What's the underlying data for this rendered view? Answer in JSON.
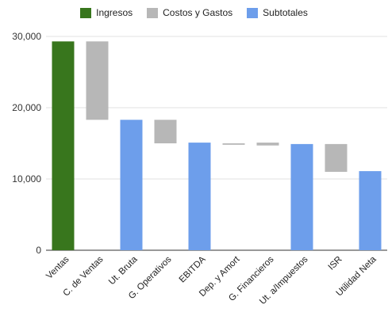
{
  "chart_data": {
    "type": "bar",
    "subtype": "waterfall",
    "legend_position": "top-center",
    "legend": [
      {
        "label": "Ingresos",
        "color": "#38761d"
      },
      {
        "label": "Costos y Gastos",
        "color": "#b7b7b7"
      },
      {
        "label": "Subtotales",
        "color": "#6d9eeb"
      }
    ],
    "ylim": [
      0,
      30000
    ],
    "yticks": [
      {
        "value": 0,
        "label": "0"
      },
      {
        "value": 10000,
        "label": "10,000"
      },
      {
        "value": 20000,
        "label": "20,000"
      },
      {
        "value": 30000,
        "label": "30,000"
      }
    ],
    "grid": true,
    "categories": [
      "Ventas",
      "C. de Ventas",
      "Ut. Bruta",
      "G. Operativos",
      "EBITDA",
      "Dep. y Amort",
      "G. Financieros",
      "Ut. a/Impuestos",
      "ISR",
      "Utilidad Neta"
    ],
    "bars": [
      {
        "category": "Ventas",
        "kind": "Ingresos",
        "start": 0,
        "end": 29300
      },
      {
        "category": "C. de Ventas",
        "kind": "Costos y Gastos",
        "start": 29300,
        "end": 18300
      },
      {
        "category": "Ut. Bruta",
        "kind": "Subtotales",
        "start": 0,
        "end": 18300
      },
      {
        "category": "G. Operativos",
        "kind": "Costos y Gastos",
        "start": 18300,
        "end": 15000
      },
      {
        "category": "EBITDA",
        "kind": "Subtotales",
        "start": 0,
        "end": 15100
      },
      {
        "category": "Dep. y Amort",
        "kind": "Costos y Gastos",
        "start": 15000,
        "end": 14800
      },
      {
        "category": "G. Financieros",
        "kind": "Costos y Gastos",
        "start": 15100,
        "end": 14700
      },
      {
        "category": "Ut. a/Impuestos",
        "kind": "Subtotales",
        "start": 0,
        "end": 14900
      },
      {
        "category": "ISR",
        "kind": "Costos y Gastos",
        "start": 14900,
        "end": 11000
      },
      {
        "category": "Utilidad Neta",
        "kind": "Subtotales",
        "start": 0,
        "end": 11100
      }
    ]
  }
}
